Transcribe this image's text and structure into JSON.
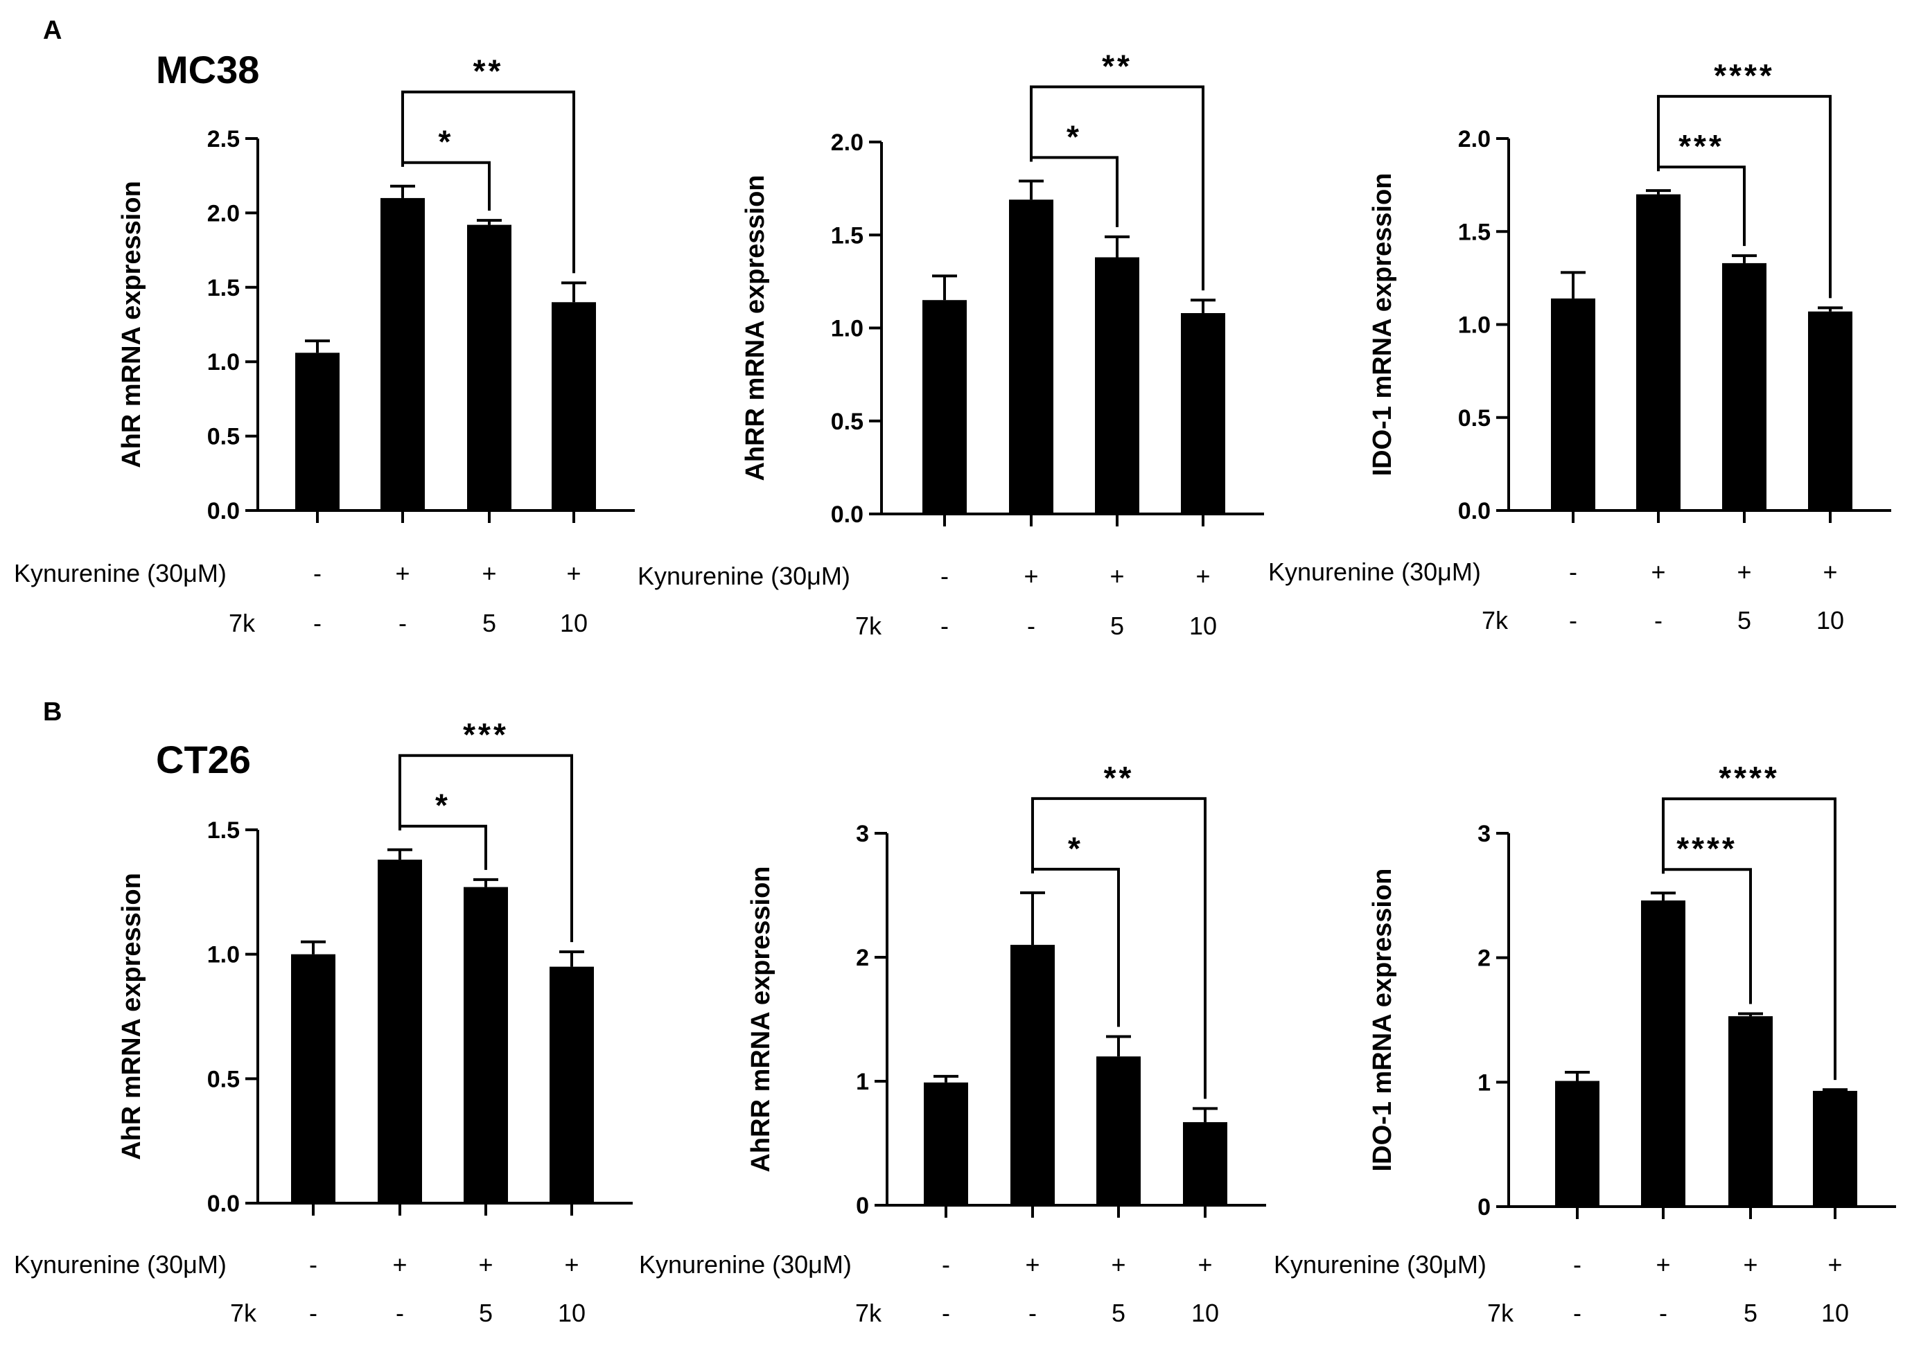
{
  "figure": {
    "panel_a_letter": "A",
    "panel_b_letter": "B",
    "panel_a_cell_line": "MC38",
    "panel_b_cell_line": "CT26",
    "condition_rows": [
      {
        "label": "Kynurenine (30μM)",
        "values": [
          "-",
          "+",
          "+",
          "+"
        ]
      },
      {
        "label": "7k",
        "values": [
          "-",
          "-",
          "5",
          "10"
        ]
      }
    ],
    "colors": {
      "bar": "#000000",
      "background": "#ffffff"
    }
  },
  "chart_data": [
    {
      "type": "bar",
      "panel": "A",
      "cell_line": "MC38",
      "ylabel": "AhR mRNA expression",
      "ylim": [
        0,
        2.5
      ],
      "yticks": [
        0.0,
        0.5,
        1.0,
        1.5,
        2.0,
        2.5
      ],
      "tick_decimals": 1,
      "categories": [
        "1",
        "2",
        "3",
        "4"
      ],
      "values": [
        1.06,
        2.1,
        1.92,
        1.4
      ],
      "errors": [
        0.08,
        0.08,
        0.03,
        0.13
      ],
      "comparisons": [
        {
          "from": 1,
          "to": 2,
          "label": "*"
        },
        {
          "from": 1,
          "to": 3,
          "label": "**"
        }
      ]
    },
    {
      "type": "bar",
      "panel": "A",
      "cell_line": "MC38",
      "ylabel": "AhRR mRNA expression",
      "ylim": [
        0,
        2.0
      ],
      "yticks": [
        0.0,
        0.5,
        1.0,
        1.5,
        2.0
      ],
      "tick_decimals": 1,
      "categories": [
        "1",
        "2",
        "3",
        "4"
      ],
      "values": [
        1.15,
        1.69,
        1.38,
        1.08
      ],
      "errors": [
        0.13,
        0.1,
        0.11,
        0.07
      ],
      "comparisons": [
        {
          "from": 1,
          "to": 2,
          "label": "*"
        },
        {
          "from": 1,
          "to": 3,
          "label": "**"
        }
      ]
    },
    {
      "type": "bar",
      "panel": "A",
      "cell_line": "MC38",
      "ylabel": "IDO-1 mRNA expression",
      "ylim": [
        0,
        2.0
      ],
      "yticks": [
        0.0,
        0.5,
        1.0,
        1.5,
        2.0
      ],
      "tick_decimals": 1,
      "categories": [
        "1",
        "2",
        "3",
        "4"
      ],
      "values": [
        1.14,
        1.7,
        1.33,
        1.07
      ],
      "errors": [
        0.14,
        0.02,
        0.04,
        0.02
      ],
      "comparisons": [
        {
          "from": 1,
          "to": 2,
          "label": "***"
        },
        {
          "from": 1,
          "to": 3,
          "label": "****"
        }
      ]
    },
    {
      "type": "bar",
      "panel": "B",
      "cell_line": "CT26",
      "ylabel": "AhR mRNA expression",
      "ylim": [
        0,
        1.5
      ],
      "yticks": [
        0.0,
        0.5,
        1.0,
        1.5
      ],
      "tick_decimals": 1,
      "categories": [
        "1",
        "2",
        "3",
        "4"
      ],
      "values": [
        1.0,
        1.38,
        1.27,
        0.95
      ],
      "errors": [
        0.05,
        0.04,
        0.03,
        0.06
      ],
      "comparisons": [
        {
          "from": 1,
          "to": 2,
          "label": "*"
        },
        {
          "from": 1,
          "to": 3,
          "label": "***"
        }
      ]
    },
    {
      "type": "bar",
      "panel": "B",
      "cell_line": "CT26",
      "ylabel": "AhRR mRNA expression",
      "ylim": [
        0,
        3
      ],
      "yticks": [
        0,
        1,
        2,
        3
      ],
      "tick_decimals": 0,
      "categories": [
        "1",
        "2",
        "3",
        "4"
      ],
      "values": [
        0.99,
        2.1,
        1.2,
        0.67
      ],
      "errors": [
        0.05,
        0.42,
        0.16,
        0.11
      ],
      "comparisons": [
        {
          "from": 1,
          "to": 2,
          "label": "*"
        },
        {
          "from": 1,
          "to": 3,
          "label": "**"
        }
      ]
    },
    {
      "type": "bar",
      "panel": "B",
      "cell_line": "CT26",
      "ylabel": "IDO-1 mRNA expression",
      "ylim": [
        0,
        3
      ],
      "yticks": [
        0,
        1,
        2,
        3
      ],
      "tick_decimals": 0,
      "categories": [
        "1",
        "2",
        "3",
        "4"
      ],
      "values": [
        1.01,
        2.46,
        1.53,
        0.93
      ],
      "errors": [
        0.07,
        0.06,
        0.02,
        0.01
      ],
      "comparisons": [
        {
          "from": 1,
          "to": 2,
          "label": "****"
        },
        {
          "from": 1,
          "to": 3,
          "label": "****"
        }
      ]
    }
  ]
}
